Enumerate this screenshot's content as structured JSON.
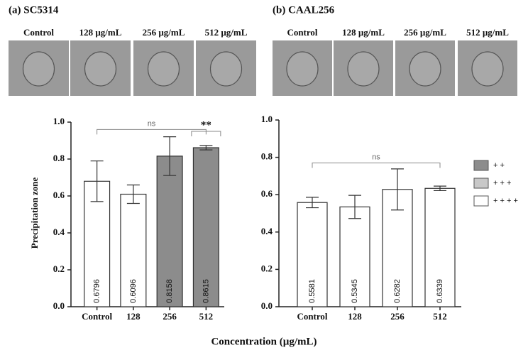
{
  "xlabel": "Concentration (µg/mL)",
  "legend": [
    {
      "name": "+ +",
      "color": "#8c8c8c"
    },
    {
      "name": "+ + +",
      "color": "#c8c8c8"
    },
    {
      "name": "+ + + +",
      "color": "#ffffff"
    }
  ],
  "chart_data": [
    {
      "type": "bar",
      "title": "(a) SC5314",
      "ylabel": "Precipitation zone",
      "image_labels": [
        "Control",
        "128 µg/mL",
        "256 µg/mL",
        "512 µg/mL"
      ],
      "categories": [
        "Control",
        "128",
        "256",
        "512"
      ],
      "values": [
        0.6796,
        0.6096,
        0.8158,
        0.8615
      ],
      "errors": [
        0.11,
        0.05,
        0.105,
        0.012
      ],
      "colors": [
        "#ffffff",
        "#ffffff",
        "#8c8c8c",
        "#8c8c8c"
      ],
      "annotations": [
        "ns",
        "**"
      ],
      "ylim": [
        0,
        1
      ],
      "yticks": [
        {
          "value": 0,
          "label": "0.0"
        },
        0.2,
        0.4,
        0.6,
        0.8,
        {
          "value": 1,
          "label": "1.0"
        }
      ]
    },
    {
      "type": "bar",
      "title": "(b) CAAL256",
      "image_labels": [
        "Control",
        "128 µg/mL",
        "256 µg/mL",
        "512 µg/mL"
      ],
      "categories": [
        "Control",
        "128",
        "256",
        "512"
      ],
      "values": [
        0.5581,
        0.5345,
        0.6282,
        0.6339
      ],
      "errors": [
        0.028,
        0.062,
        0.11,
        0.012
      ],
      "colors": [
        "#ffffff",
        "#ffffff",
        "#ffffff",
        "#ffffff"
      ],
      "annotations": [
        "ns"
      ],
      "ylim": [
        0,
        1
      ],
      "yticks": [
        {
          "value": 0,
          "label": "0.0"
        },
        0.2,
        0.4,
        0.6,
        0.8,
        {
          "value": 1,
          "label": "1.0"
        }
      ]
    }
  ]
}
